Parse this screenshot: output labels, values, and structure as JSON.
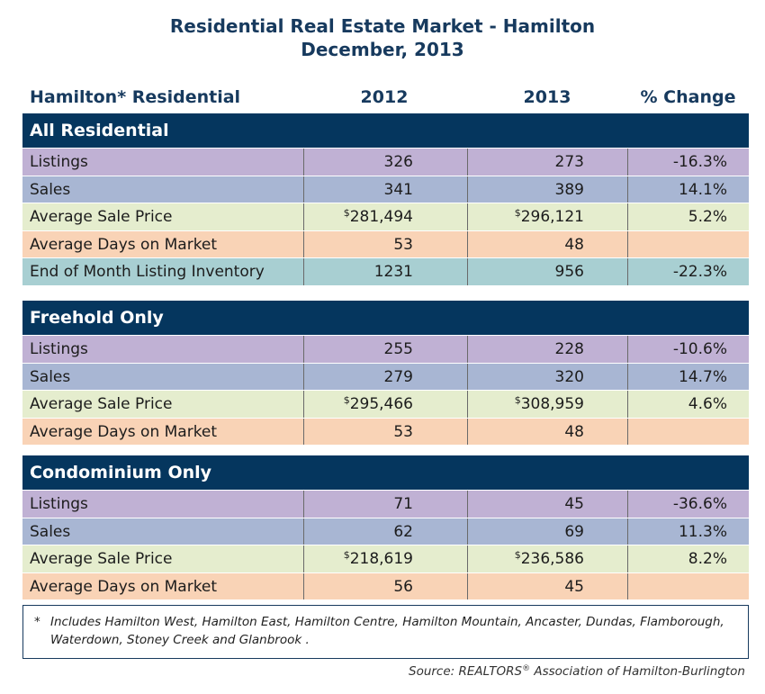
{
  "title": {
    "line1": "Residential Real Estate Market - Hamilton",
    "line2": "December, 2013"
  },
  "columns": {
    "label": "Hamilton* Residential",
    "y2012": "2012",
    "y2013": "2013",
    "change": "% Change"
  },
  "sections": [
    {
      "heading": "All Residential",
      "rows": [
        {
          "label": "Listings",
          "v2012": "326",
          "v2013": "273",
          "change": "-16.3%",
          "color": "#c0b1d4"
        },
        {
          "label": "Sales",
          "v2012": "341",
          "v2013": "389",
          "change": "14.1%",
          "color": "#a8b6d3"
        },
        {
          "label": "Average Sale Price",
          "cur": "$",
          "v2012": "281,494",
          "v2013": "296,121",
          "change": "5.2%",
          "color": "#e5edce"
        },
        {
          "label": "Average Days on Market",
          "v2012": "53",
          "v2013": "48",
          "change": "",
          "color": "#f9d3b6"
        },
        {
          "label": "End of Month Listing Inventory",
          "v2012": "1231",
          "v2013": "956",
          "change": "-22.3%",
          "color": "#a8cfd2"
        }
      ]
    },
    {
      "heading": "Freehold Only",
      "rows": [
        {
          "label": "Listings",
          "v2012": "255",
          "v2013": "228",
          "change": "-10.6%",
          "color": "#c0b1d4"
        },
        {
          "label": "Sales",
          "v2012": "279",
          "v2013": "320",
          "change": "14.7%",
          "color": "#a8b6d3"
        },
        {
          "label": "Average Sale Price",
          "cur": "$",
          "v2012": "295,466",
          "v2013": "308,959",
          "change": "4.6%",
          "color": "#e5edce"
        },
        {
          "label": "Average Days on Market",
          "v2012": "53",
          "v2013": "48",
          "change": "",
          "color": "#f9d3b6"
        }
      ]
    },
    {
      "heading": "Condominium Only",
      "rows": [
        {
          "label": "Listings",
          "v2012": "71",
          "v2013": "45",
          "change": "-36.6%",
          "color": "#c0b1d4"
        },
        {
          "label": "Sales",
          "v2012": "62",
          "v2013": "69",
          "change": "11.3%",
          "color": "#a8b6d3"
        },
        {
          "label": "Average Sale Price",
          "cur": "$",
          "v2012": "218,619",
          "v2013": "236,586",
          "change": "8.2%",
          "color": "#e5edce"
        },
        {
          "label": "Average Days on Market",
          "v2012": "56",
          "v2013": "45",
          "change": "",
          "color": "#f9d3b6"
        }
      ]
    }
  ],
  "footnote": {
    "marker": "*",
    "text": "Includes Hamilton West, Hamilton East, Hamilton Centre, Hamilton Mountain, Ancaster, Dundas, Flamborough, Waterdown, Stoney Creek and Glanbrook ."
  },
  "source": {
    "prefix": "Source:  REALTORS",
    "reg": "®",
    "suffix": " Association of Hamilton-Burlington"
  }
}
